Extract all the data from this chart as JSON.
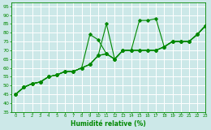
{
  "title": "",
  "xlabel": "Humidité relative (%)",
  "ylabel": "",
  "xlim": [
    -0.5,
    23
  ],
  "ylim": [
    35,
    97
  ],
  "yticks": [
    35,
    40,
    45,
    50,
    55,
    60,
    65,
    70,
    75,
    80,
    85,
    90,
    95
  ],
  "xticks": [
    0,
    1,
    2,
    3,
    4,
    5,
    6,
    7,
    8,
    9,
    10,
    11,
    12,
    13,
    14,
    15,
    16,
    17,
    18,
    19,
    20,
    21,
    22,
    23
  ],
  "bg_color": "#cce8e8",
  "grid_color": "#ffffff",
  "line_color": "#008800",
  "series": [
    {
      "x": [
        0,
        1,
        2,
        3,
        4,
        5,
        6,
        7,
        8,
        9,
        10,
        11,
        12,
        13,
        14,
        15,
        16,
        17,
        18,
        19,
        20,
        21,
        22,
        23
      ],
      "y": [
        45,
        49,
        51,
        52,
        55,
        56,
        58,
        58,
        60,
        62,
        67,
        68,
        65,
        70,
        70,
        87,
        87,
        88,
        72,
        75,
        75,
        75,
        79,
        84
      ]
    },
    {
      "x": [
        0,
        1,
        2,
        3,
        4,
        5,
        6,
        7,
        8,
        9,
        10,
        11,
        12,
        13,
        14,
        15,
        16,
        17,
        18,
        19,
        20,
        21,
        22,
        23
      ],
      "y": [
        45,
        49,
        51,
        52,
        55,
        56,
        58,
        58,
        60,
        79,
        76,
        68,
        65,
        70,
        70,
        70,
        70,
        70,
        72,
        75,
        75,
        75,
        79,
        84
      ]
    },
    {
      "x": [
        0,
        1,
        2,
        3,
        4,
        5,
        6,
        7,
        8,
        9,
        10,
        11,
        12,
        13,
        14,
        15,
        16,
        17,
        18,
        19,
        20,
        21,
        22,
        23
      ],
      "y": [
        45,
        49,
        51,
        52,
        55,
        56,
        58,
        58,
        60,
        62,
        67,
        85,
        65,
        70,
        70,
        70,
        70,
        70,
        72,
        75,
        75,
        75,
        79,
        84
      ]
    },
    {
      "x": [
        0,
        1,
        2,
        3,
        4,
        5,
        6,
        7,
        8,
        9,
        10,
        11,
        12,
        13,
        14,
        15,
        16,
        17,
        18,
        19,
        20,
        21,
        22,
        23
      ],
      "y": [
        45,
        49,
        51,
        52,
        55,
        56,
        58,
        58,
        60,
        62,
        67,
        68,
        65,
        70,
        70,
        70,
        70,
        70,
        72,
        75,
        75,
        75,
        79,
        84
      ]
    }
  ]
}
